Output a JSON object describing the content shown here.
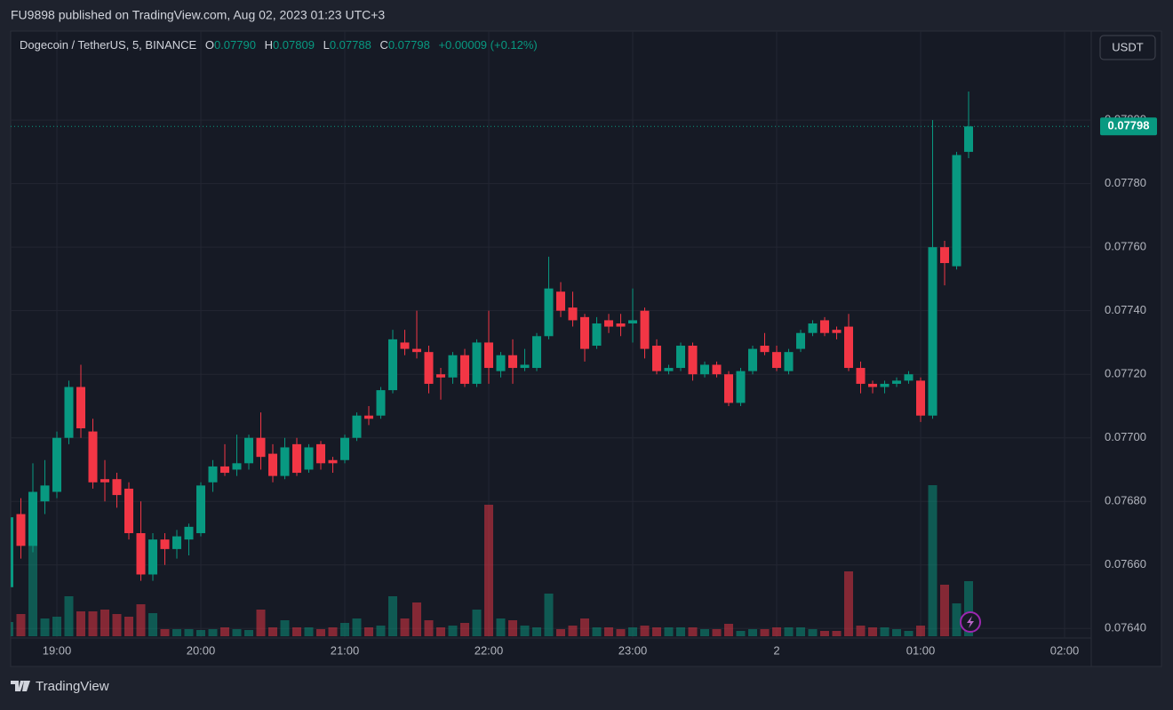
{
  "header": {
    "published": "FU9898 published on TradingView.com, Aug 02, 2023 01:23 UTC+3",
    "footer": "TradingView"
  },
  "legend": {
    "symbol": "Dogecoin / TetherUS, 5, BINANCE",
    "open_label": "O",
    "open": "0.07790",
    "high_label": "H",
    "high": "0.07809",
    "low_label": "L",
    "low": "0.07788",
    "close_label": "C",
    "close": "0.07798",
    "change": "+0.00009 (+0.12%)",
    "currency": "USDT"
  },
  "chart_data": {
    "type": "candlestick",
    "x": [
      "18:40",
      "18:45",
      "18:50",
      "18:55",
      "19:00",
      "19:05",
      "19:10",
      "19:15",
      "19:20",
      "19:25",
      "19:30",
      "19:35",
      "19:40",
      "19:45",
      "19:50",
      "19:55",
      "20:00",
      "20:05",
      "20:10",
      "20:15",
      "20:20",
      "20:25",
      "20:30",
      "20:35",
      "20:40",
      "20:45",
      "20:50",
      "20:55",
      "21:00",
      "21:05",
      "21:10",
      "21:15",
      "21:20",
      "21:25",
      "21:30",
      "21:35",
      "21:40",
      "21:45",
      "21:50",
      "21:55",
      "22:00",
      "22:05",
      "22:10",
      "22:15",
      "22:20",
      "22:25",
      "22:30",
      "22:35",
      "22:40",
      "22:45",
      "22:50",
      "22:55",
      "23:00",
      "23:05",
      "23:10",
      "23:15",
      "23:20",
      "23:25",
      "23:30",
      "23:35",
      "23:40",
      "23:45",
      "23:50",
      "23:55",
      "00:00",
      "00:05",
      "00:10",
      "00:15",
      "00:20",
      "00:25",
      "00:30",
      "00:35",
      "00:40",
      "00:45",
      "00:50",
      "00:55",
      "01:00",
      "01:05",
      "01:10",
      "01:15",
      "01:20"
    ],
    "open": [
      0.07653,
      0.07676,
      0.07666,
      0.0768,
      0.07683,
      0.077,
      0.07716,
      0.07702,
      0.07687,
      0.07687,
      0.07684,
      0.0767,
      0.07657,
      0.07668,
      0.07665,
      0.07668,
      0.0767,
      0.07686,
      0.07691,
      0.0769,
      0.07692,
      0.077,
      0.07695,
      0.07688,
      0.07698,
      0.0769,
      0.07698,
      0.07693,
      0.07693,
      0.077,
      0.07707,
      0.07707,
      0.07715,
      0.0773,
      0.07728,
      0.07727,
      0.0772,
      0.07719,
      0.07726,
      0.07717,
      0.0773,
      0.07721,
      0.07726,
      0.07722,
      0.07722,
      0.07732,
      0.07746,
      0.07741,
      0.07738,
      0.07729,
      0.07737,
      0.07736,
      0.07736,
      0.0774,
      0.07729,
      0.07721,
      0.07722,
      0.07729,
      0.0772,
      0.07723,
      0.0772,
      0.07711,
      0.07721,
      0.07729,
      0.07727,
      0.07721,
      0.07728,
      0.07733,
      0.07737,
      0.07734,
      0.07735,
      0.07722,
      0.07717,
      0.07716,
      0.07717,
      0.07718,
      0.07718,
      0.07707,
      0.0776,
      0.07754,
      0.0779
    ],
    "high": [
      0.07677,
      0.07681,
      0.07692,
      0.07693,
      0.07702,
      0.07718,
      0.07723,
      0.07706,
      0.07693,
      0.07689,
      0.07686,
      0.0768,
      0.0767,
      0.0767,
      0.07671,
      0.07673,
      0.07686,
      0.07693,
      0.07698,
      0.07701,
      0.07701,
      0.07708,
      0.07698,
      0.077,
      0.077,
      0.07698,
      0.07699,
      0.07694,
      0.07701,
      0.07708,
      0.0771,
      0.07716,
      0.07734,
      0.07734,
      0.0774,
      0.07729,
      0.07722,
      0.07727,
      0.07728,
      0.07731,
      0.0774,
      0.07727,
      0.07731,
      0.07728,
      0.07733,
      0.07757,
      0.07749,
      0.07746,
      0.07739,
      0.07738,
      0.07739,
      0.07739,
      0.07747,
      0.07741,
      0.07731,
      0.07723,
      0.0773,
      0.0773,
      0.07724,
      0.07724,
      0.07721,
      0.07722,
      0.07729,
      0.07733,
      0.07729,
      0.07728,
      0.07734,
      0.07737,
      0.07738,
      0.07735,
      0.07739,
      0.07724,
      0.07718,
      0.07718,
      0.07719,
      0.07721,
      0.07719,
      0.078,
      0.07762,
      0.0779,
      0.07809
    ],
    "low": [
      0.0764,
      0.07662,
      0.07664,
      0.07676,
      0.07681,
      0.07698,
      0.077,
      0.07684,
      0.0768,
      0.07678,
      0.07668,
      0.07655,
      0.07655,
      0.0766,
      0.07662,
      0.07663,
      0.07669,
      0.07683,
      0.07688,
      0.07688,
      0.0769,
      0.0769,
      0.07686,
      0.07687,
      0.07688,
      0.07689,
      0.0769,
      0.07689,
      0.07692,
      0.07699,
      0.07704,
      0.07706,
      0.07714,
      0.07726,
      0.07725,
      0.07714,
      0.07712,
      0.07717,
      0.07716,
      0.07716,
      0.07717,
      0.07719,
      0.07717,
      0.07721,
      0.07721,
      0.07731,
      0.07738,
      0.07735,
      0.07724,
      0.07728,
      0.07733,
      0.07732,
      0.0773,
      0.07725,
      0.0772,
      0.0772,
      0.07721,
      0.07718,
      0.07719,
      0.07719,
      0.0771,
      0.0771,
      0.0772,
      0.07726,
      0.07721,
      0.0772,
      0.07727,
      0.07732,
      0.07732,
      0.07731,
      0.07721,
      0.07714,
      0.07714,
      0.07714,
      0.07716,
      0.07717,
      0.07705,
      0.07706,
      0.07748,
      0.07753,
      0.07788
    ],
    "close": [
      0.07675,
      0.07666,
      0.07683,
      0.07685,
      0.077,
      0.07716,
      0.07703,
      0.07686,
      0.07686,
      0.07682,
      0.0767,
      0.07657,
      0.07668,
      0.07665,
      0.07669,
      0.07672,
      0.07685,
      0.07691,
      0.07689,
      0.07692,
      0.077,
      0.07694,
      0.07688,
      0.07697,
      0.07689,
      0.07697,
      0.07692,
      0.07692,
      0.077,
      0.07707,
      0.07706,
      0.07715,
      0.07731,
      0.07728,
      0.07727,
      0.07717,
      0.07719,
      0.07726,
      0.07717,
      0.0773,
      0.07722,
      0.07726,
      0.07722,
      0.07723,
      0.07732,
      0.07747,
      0.0774,
      0.07737,
      0.07728,
      0.07736,
      0.07735,
      0.07735,
      0.07737,
      0.07728,
      0.07721,
      0.07722,
      0.07729,
      0.0772,
      0.07723,
      0.0772,
      0.07711,
      0.07721,
      0.07728,
      0.07727,
      0.07722,
      0.07727,
      0.07733,
      0.07736,
      0.07733,
      0.07733,
      0.07722,
      0.07717,
      0.07716,
      0.07717,
      0.07718,
      0.0772,
      0.07707,
      0.0776,
      0.07755,
      0.07789,
      0.07798
    ],
    "volume": [
      16,
      25,
      153,
      20,
      22,
      45,
      28,
      28,
      30,
      25,
      22,
      36,
      26,
      8,
      8,
      8,
      7,
      8,
      10,
      8,
      7,
      30,
      10,
      18,
      10,
      10,
      8,
      10,
      15,
      20,
      10,
      12,
      45,
      20,
      38,
      18,
      10,
      12,
      15,
      30,
      148,
      20,
      18,
      12,
      10,
      48,
      8,
      12,
      20,
      10,
      10,
      8,
      10,
      12,
      10,
      10,
      10,
      10,
      8,
      8,
      14,
      6,
      8,
      8,
      10,
      10,
      10,
      8,
      6,
      6,
      73,
      12,
      10,
      10,
      8,
      6,
      12,
      170,
      58,
      37,
      62
    ],
    "up_color": "#089981",
    "down_color": "#f23645",
    "up_volume_color": "rgba(8,153,129,0.5)",
    "down_volume_color": "rgba(242,54,69,0.5)",
    "ylim": [
      0.07637,
      0.07828
    ],
    "yticks": [
      {
        "value": 0.0764,
        "label": "0.07640"
      },
      {
        "value": 0.0766,
        "label": "0.07660"
      },
      {
        "value": 0.0768,
        "label": "0.07680"
      },
      {
        "value": 0.077,
        "label": "0.07700"
      },
      {
        "value": 0.0772,
        "label": "0.07720"
      },
      {
        "value": 0.0774,
        "label": "0.07740"
      },
      {
        "value": 0.0776,
        "label": "0.07760"
      },
      {
        "value": 0.0778,
        "label": "0.07780"
      },
      {
        "value": 0.078,
        "label": "0.07800"
      }
    ],
    "xticks": [
      "19:00",
      "20:00",
      "21:00",
      "22:00",
      "23:00",
      {
        "value": "00:00",
        "label": "2"
      },
      "01:00",
      "02:00"
    ],
    "last_price_label": "0.07798",
    "grid": true
  }
}
